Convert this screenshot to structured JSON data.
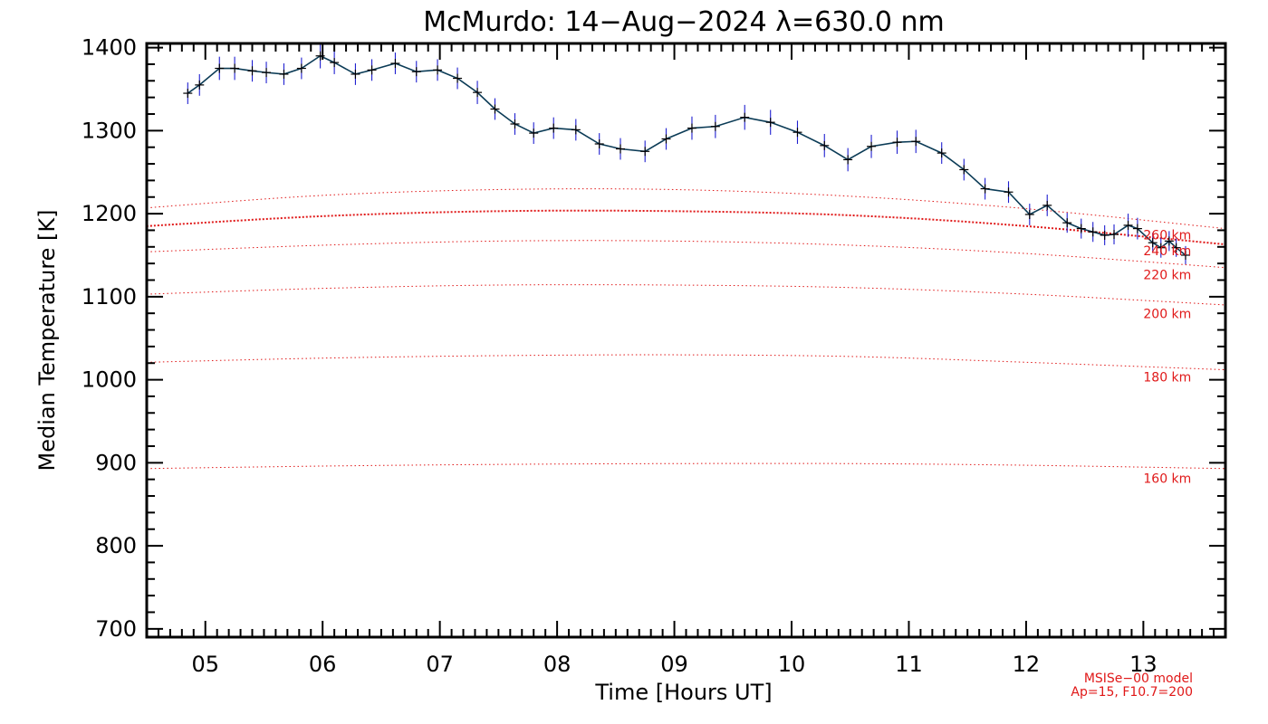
{
  "chart_data": {
    "type": "line",
    "title": "McMurdo: 14−Aug−2024 λ=630.0 nm",
    "xlabel": "Time [Hours UT]",
    "ylabel": "Median Temperature [K]",
    "xlim": [
      4.5,
      13.7
    ],
    "ylim": [
      690,
      1405
    ],
    "x_ticks": [
      5,
      6,
      7,
      8,
      9,
      10,
      11,
      12,
      13
    ],
    "x_tick_labels": [
      "05",
      "06",
      "07",
      "08",
      "09",
      "10",
      "11",
      "12",
      "13"
    ],
    "y_ticks": [
      700,
      800,
      900,
      1000,
      1100,
      1200,
      1300,
      1400
    ],
    "y_tick_labels": [
      "700",
      "800",
      "900",
      "1000",
      "1100",
      "1200",
      "1300",
      "1400"
    ],
    "grid": false,
    "series": [
      {
        "x": [
          4.85,
          4.95,
          5.12,
          5.25,
          5.4,
          5.52,
          5.67,
          5.82,
          5.98,
          6.1,
          6.28,
          6.42,
          6.62,
          6.8,
          6.98,
          7.15,
          7.32,
          7.47,
          7.64,
          7.8,
          7.97,
          8.16,
          8.36,
          8.54,
          8.75,
          8.93,
          9.15,
          9.35,
          9.6,
          9.82,
          10.05,
          10.28,
          10.48,
          10.68,
          10.9,
          11.06,
          11.28,
          11.47,
          11.65,
          11.85,
          12.03,
          12.18,
          12.35,
          12.47,
          12.57,
          12.67,
          12.75,
          12.87,
          12.95,
          13.08,
          13.15,
          13.22,
          13.28,
          13.36
        ],
        "values": [
          1345,
          1355,
          1375,
          1375,
          1372,
          1370,
          1368,
          1375,
          1390,
          1382,
          1368,
          1373,
          1381,
          1371,
          1373,
          1363,
          1346,
          1326,
          1308,
          1297,
          1303,
          1301,
          1284,
          1278,
          1275,
          1290,
          1303,
          1305,
          1316,
          1310,
          1298,
          1282,
          1265,
          1281,
          1286,
          1287,
          1273,
          1253,
          1230,
          1226,
          1199,
          1210,
          1189,
          1182,
          1178,
          1174,
          1175,
          1186,
          1182,
          1165,
          1159,
          1167,
          1159,
          1150
        ],
        "errors": [
          13,
          13,
          14,
          14,
          13,
          13,
          13,
          13,
          15,
          14,
          13,
          13,
          13,
          13,
          13,
          13,
          14,
          13,
          13,
          13,
          13,
          13,
          13,
          13,
          13,
          13,
          14,
          14,
          15,
          15,
          14,
          14,
          14,
          14,
          14,
          14,
          13,
          13,
          13,
          13,
          13,
          13,
          12,
          12,
          12,
          12,
          12,
          14,
          13,
          12,
          12,
          12,
          11,
          11
        ],
        "color": "#000000",
        "error_color": "#1f1fd0",
        "line_color": "#0b3b56"
      }
    ],
    "model_curves": [
      {
        "label": "160 km",
        "label_x": 13.0,
        "label_y": 876,
        "x": [
          4.5,
          6,
          7.5,
          9,
          10.5,
          12,
          13.7
        ],
        "values": [
          893,
          896,
          898,
          899,
          899,
          897,
          893
        ]
      },
      {
        "label": "180 km",
        "label_x": 13.0,
        "label_y": 998,
        "x": [
          4.5,
          6,
          7.5,
          9,
          10.5,
          12,
          13.7
        ],
        "values": [
          1021,
          1026,
          1029,
          1030,
          1028,
          1021,
          1012
        ]
      },
      {
        "label": "200 km",
        "label_x": 13.0,
        "label_y": 1074,
        "x": [
          4.5,
          6,
          7.5,
          9,
          10.5,
          12,
          13.7
        ],
        "values": [
          1103,
          1110,
          1114,
          1114,
          1111,
          1103,
          1090
        ]
      },
      {
        "label": "220 km",
        "label_x": 13.0,
        "label_y": 1121,
        "x": [
          4.5,
          6,
          7.5,
          9,
          10.5,
          12,
          13.7
        ],
        "values": [
          1154,
          1162,
          1167,
          1167,
          1162,
          1152,
          1135
        ]
      },
      {
        "label": "240 km",
        "label_x": 13.0,
        "label_y": 1150,
        "x": [
          4.5,
          6,
          7.5,
          9,
          10.5,
          12,
          13.7
        ],
        "values": [
          1185,
          1197,
          1203,
          1203,
          1198,
          1185,
          1163
        ]
      },
      {
        "label": "260 km",
        "label_x": 13.0,
        "label_y": 1169,
        "x": [
          4.5,
          6,
          7.5,
          9,
          10.5,
          12,
          13.7
        ],
        "values": [
          1207,
          1222,
          1229,
          1229,
          1221,
          1206,
          1182
        ]
      }
    ],
    "model_note_lines": [
      "MSISe−00 model",
      "Ap=15, F10.7=200"
    ],
    "colors": {
      "axis": "#000000",
      "model": "#e01818",
      "model_bold": "#e01818",
      "data_line": "#0b3b56",
      "errors": "#1f1fd0"
    }
  }
}
